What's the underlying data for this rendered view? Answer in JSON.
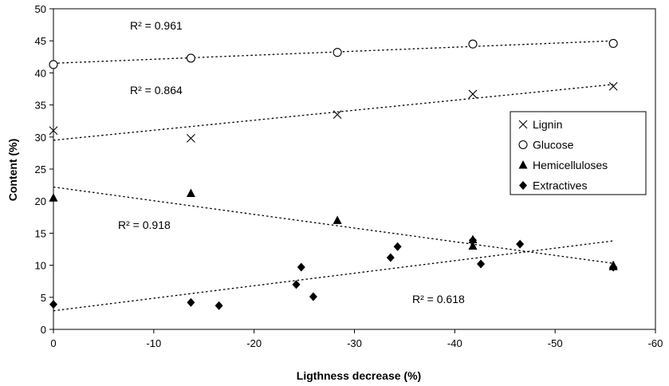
{
  "chart_data": {
    "type": "scatter",
    "xlabel": "Ligthness decrease (%)",
    "ylabel": "Content (%)",
    "xlim": [
      0,
      -60
    ],
    "ylim": [
      0,
      50
    ],
    "x_ticks": [
      0,
      -10,
      -20,
      -30,
      -40,
      -50,
      -60
    ],
    "y_ticks": [
      0,
      5,
      10,
      15,
      20,
      25,
      30,
      35,
      40,
      45,
      50
    ],
    "grid": false,
    "legend_position": "right",
    "series": [
      {
        "name": "Lignin",
        "marker": "cross",
        "points": [
          [
            0,
            31.0
          ],
          [
            -13.7,
            29.8
          ],
          [
            -28.3,
            33.5
          ],
          [
            -41.8,
            36.7
          ],
          [
            -55.8,
            37.9
          ]
        ],
        "trend": [
          [
            0,
            29.5
          ],
          [
            -55.8,
            38.2
          ]
        ],
        "r2": "R² = 0.864"
      },
      {
        "name": "Glucose",
        "marker": "circle-open",
        "points": [
          [
            0,
            41.3
          ],
          [
            -13.7,
            42.3
          ],
          [
            -28.3,
            43.2
          ],
          [
            -41.8,
            44.5
          ],
          [
            -55.8,
            44.6
          ]
        ],
        "trend": [
          [
            0,
            41.5
          ],
          [
            -55.8,
            45.0
          ]
        ],
        "r2": "R² = 0.961"
      },
      {
        "name": "Hemicelluloses",
        "marker": "triangle",
        "points": [
          [
            0,
            20.5
          ],
          [
            -13.7,
            21.2
          ],
          [
            -28.3,
            17.0
          ],
          [
            -41.8,
            13.0
          ],
          [
            -41.8,
            14.0
          ],
          [
            -55.8,
            9.8
          ],
          [
            -55.8,
            10.0
          ]
        ],
        "trend": [
          [
            0,
            22.2
          ],
          [
            -55.8,
            10.3
          ]
        ],
        "r2": "R² = 0.918"
      },
      {
        "name": "Extractives",
        "marker": "diamond",
        "points": [
          [
            0,
            3.9
          ],
          [
            -13.7,
            4.2
          ],
          [
            -16.5,
            3.7
          ],
          [
            -24.2,
            7.0
          ],
          [
            -24.7,
            9.7
          ],
          [
            -25.9,
            5.1
          ],
          [
            -33.6,
            11.2
          ],
          [
            -34.3,
            12.9
          ],
          [
            -41.8,
            13.9
          ],
          [
            -42.6,
            10.2
          ],
          [
            -46.5,
            13.3
          ],
          [
            -55.8,
            9.7
          ]
        ],
        "trend": [
          [
            0,
            2.9
          ],
          [
            -55.8,
            13.8
          ]
        ],
        "r2": "R² = 0.618"
      }
    ]
  }
}
